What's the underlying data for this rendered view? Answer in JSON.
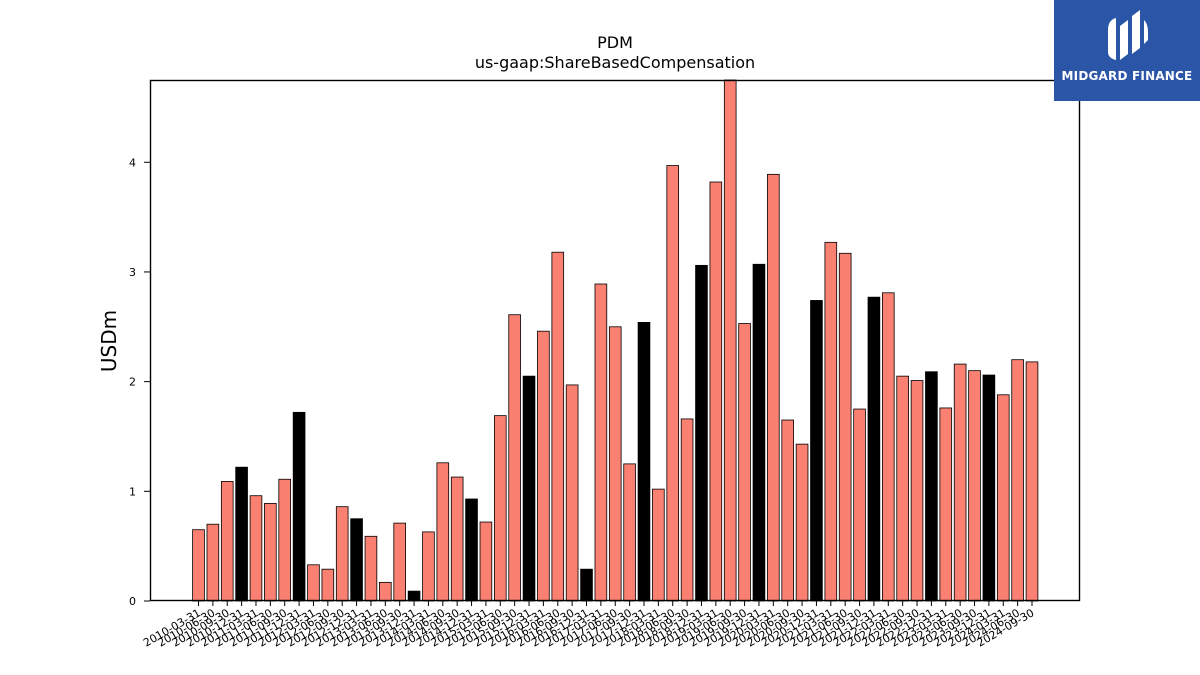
{
  "brand": {
    "name": "MIDGARD FINANCE",
    "bg_color": "#2b55a6"
  },
  "chart_data": {
    "type": "bar",
    "title": "PDM",
    "subtitle": "us-gaap:ShareBasedCompensation",
    "xlabel": "",
    "ylabel": "USDm",
    "ylim": [
      0,
      4.75
    ],
    "yticks": [
      0,
      1,
      2,
      3,
      4
    ],
    "grid": false,
    "colors": {
      "quarter": "#fa8072",
      "annual": "#000000"
    },
    "categories": [
      "2010-03-31",
      "2010-06-30",
      "2010-09-30",
      "2010-12-31",
      "2011-03-31",
      "2011-06-30",
      "2011-09-30",
      "2011-12-31",
      "2012-03-31",
      "2012-06-30",
      "2012-09-30",
      "2012-12-31",
      "2013-03-31",
      "2013-06-30",
      "2013-09-30",
      "2013-12-31",
      "2014-03-31",
      "2014-06-30",
      "2014-09-30",
      "2014-12-31",
      "2015-03-31",
      "2015-06-30",
      "2015-09-30",
      "2015-12-31",
      "2016-03-31",
      "2016-06-30",
      "2016-09-30",
      "2016-12-31",
      "2017-03-31",
      "2017-06-30",
      "2017-09-30",
      "2017-12-31",
      "2018-03-31",
      "2018-06-30",
      "2018-09-30",
      "2018-12-31",
      "2019-03-31",
      "2019-06-30",
      "2019-09-30",
      "2019-12-31",
      "2020-03-31",
      "2020-06-30",
      "2020-09-30",
      "2020-12-31",
      "2021-03-31",
      "2021-06-30",
      "2021-09-30",
      "2021-12-31",
      "2022-03-31",
      "2022-06-30",
      "2022-09-30",
      "2022-12-31",
      "2023-03-31",
      "2023-06-30",
      "2023-09-30",
      "2023-12-31",
      "2024-03-31",
      "2024-06-30",
      "2024-09-30"
    ],
    "values": [
      0.65,
      0.7,
      1.09,
      1.22,
      0.96,
      0.89,
      1.11,
      1.72,
      0.33,
      0.29,
      0.86,
      0.75,
      0.59,
      0.17,
      0.71,
      0.09,
      0.63,
      1.26,
      1.13,
      0.93,
      0.72,
      1.69,
      2.61,
      2.05,
      2.46,
      3.18,
      1.97,
      0.29,
      2.89,
      2.5,
      1.25,
      2.54,
      1.02,
      3.97,
      1.66,
      3.06,
      3.82,
      4.75,
      2.53,
      3.07,
      3.89,
      1.65,
      1.43,
      2.74,
      3.27,
      3.17,
      1.75,
      2.77,
      2.81,
      2.05,
      2.01,
      2.09,
      1.76,
      2.16,
      2.1,
      2.06,
      1.88,
      2.2,
      2.18
    ]
  }
}
